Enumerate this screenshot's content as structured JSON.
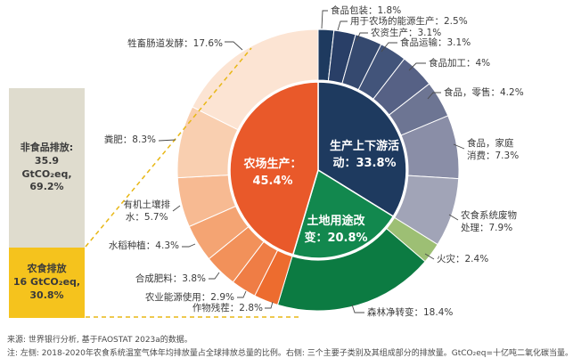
{
  "bar": {
    "segments": [
      {
        "id": "nonfood",
        "label": "非食品排放",
        "lines": [
          "非食品排放:",
          "35.9 GtCO₂eq,",
          "69.2%"
        ],
        "pct": 69.2,
        "color": "#dfdcce"
      },
      {
        "id": "agrifood",
        "label": "农食排放",
        "lines": [
          "农食排放",
          "16 GtCO₂eq,",
          "30.8%"
        ],
        "pct": 30.8,
        "color": "#f5c31d"
      }
    ]
  },
  "chart_data": {
    "type": "pie",
    "subtype": "nested-donut",
    "units": "percent",
    "legend_position": "callout-labels",
    "inner_series": [
      {
        "label": "生产上下游活动",
        "value": 33.8,
        "display": "生产上下游活\n动：33.8%",
        "color": "#1e3a5f"
      },
      {
        "label": "土地用途改变",
        "value": 20.8,
        "display": "土地用途改\n变：20.8%",
        "color": "#12884e"
      },
      {
        "label": "农场生产",
        "value": 45.4,
        "display": "农场生产：\n45.4%",
        "color": "#e9592a"
      }
    ],
    "outer_series": [
      {
        "label": "食品包装",
        "value": 1.8,
        "display": "食品包装：1.8%",
        "color": "#1e3a5f"
      },
      {
        "label": "用于农场的能源生产",
        "value": 2.5,
        "display": "用于农场的能源生产：2.5%",
        "color": "#293f67"
      },
      {
        "label": "农资生产",
        "value": 3.1,
        "display": "农资生产：3.1%",
        "color": "#35496f"
      },
      {
        "label": "食品运输",
        "value": 3.1,
        "display": "食品运输：3.1%",
        "color": "#42547a"
      },
      {
        "label": "食品加工",
        "value": 4.0,
        "display": "食品加工：4%",
        "color": "#566185"
      },
      {
        "label": "食品，零售",
        "value": 4.2,
        "display": "食品，零售：4.2%",
        "color": "#6d7593"
      },
      {
        "label": "食品，家庭消费",
        "value": 7.3,
        "display": "食品，家庭\n消费：7.3%",
        "color": "#8a8ea7"
      },
      {
        "label": "农食系统废物处理",
        "value": 7.9,
        "display": "农食系统废物\n处理：7.9%",
        "color": "#a1a4b7"
      },
      {
        "label": "火灾",
        "value": 2.4,
        "display": "火灾：2.4%",
        "color": "#9dbf74"
      },
      {
        "label": "森林净转变",
        "value": 18.4,
        "display": "森林净转变：18.4%",
        "color": "#0c7b42"
      },
      {
        "label": "作物残茬",
        "value": 2.8,
        "display": "作物残茬：2.8%",
        "color": "#ed6c2f"
      },
      {
        "label": "农业能源使用",
        "value": 2.9,
        "display": "农业能源使用：2.9%",
        "color": "#ef7d45"
      },
      {
        "label": "合成肥料",
        "value": 3.8,
        "display": "合成肥料：3.8%",
        "color": "#f2915a"
      },
      {
        "label": "水稻种植",
        "value": 4.3,
        "display": "水稻种植：4.3%",
        "color": "#f4a473"
      },
      {
        "label": "有机土壤排水",
        "value": 5.7,
        "display": "有机土壤排\n水：5.7%",
        "color": "#f7ba92"
      },
      {
        "label": "粪肥",
        "value": 8.3,
        "display": "粪肥：8.3%",
        "color": "#f9cfb0"
      },
      {
        "label": "牲畜肠道发酵",
        "value": 17.6,
        "display": "牲畜肠道发酵：17.6%",
        "color": "#fce4d3"
      }
    ],
    "connector_color": "#e8b715"
  },
  "source_note": "来源: 世界银行分析, 基于FAOSTAT 2023a的数据。",
  "footnote": "注: 左侧: 2018-2020年农食系统温室气体年均排放量占全球排放总量的比例。右侧: 三个主要子类别及其组成部分的排放量。GtCO₂eq=十亿吨二氧化碳当量。"
}
